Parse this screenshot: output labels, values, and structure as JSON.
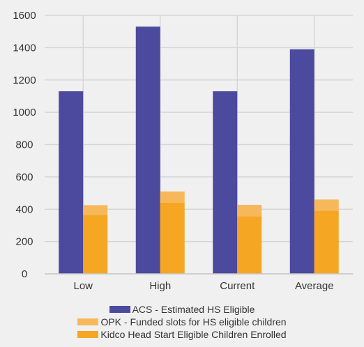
{
  "chart_data": {
    "type": "bar",
    "stacked_groups": true,
    "categories": [
      "Low",
      "High",
      "Current",
      "Average"
    ],
    "series": [
      {
        "name": "ACS - Estimated HS Eligible",
        "values": [
          1130,
          1530,
          1130,
          1390
        ],
        "color": "#4b4a9e"
      },
      {
        "name": "OPK - Funded slots for HS eligible children",
        "values": [
          60,
          70,
          70,
          70
        ],
        "color": "#f7b85c"
      },
      {
        "name": "Kidco Head Start Eligible Children Enrolled",
        "values": [
          365,
          440,
          357,
          390
        ],
        "color": "#f5a623"
      }
    ],
    "notes": "OPK segment is stacked on top of the Kidco segment in the second bar of each group",
    "ylim": [
      0,
      1600
    ],
    "yticks": [
      "0",
      "200",
      "400",
      "600",
      "800",
      "1000",
      "1200",
      "1400",
      "1600"
    ],
    "grid": true,
    "legend_position": "bottom",
    "title": "",
    "xlabel": "",
    "ylabel": ""
  }
}
